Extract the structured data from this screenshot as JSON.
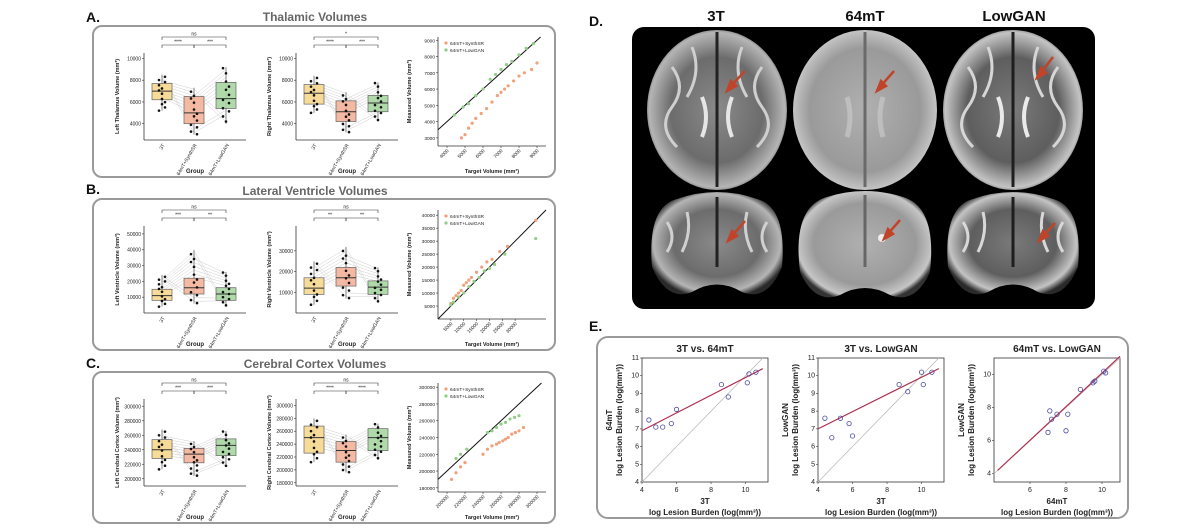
{
  "sections": {
    "A": {
      "letter": "A.",
      "title": "Thalamic Volumes"
    },
    "B": {
      "letter": "B.",
      "title": "Lateral Ventricle Volumes"
    },
    "C": {
      "letter": "C.",
      "title": "Cerebral Cortex Volumes"
    },
    "D": {
      "letter": "D.",
      "col_titles": [
        "3T",
        "64mT",
        "LowGAN"
      ]
    },
    "E": {
      "letter": "E."
    }
  },
  "colors": {
    "box_3t": "#f7d98f",
    "box_synth": "#f5b39a",
    "box_lowgan": "#a9d6a3",
    "scatter_synth": "#f0a07a",
    "scatter_lowgan": "#8fcf85",
    "reg_line": "#b03050",
    "identity_line": "#bbbbbb",
    "arrow": "#c0442a"
  },
  "groups": [
    "3T",
    "64mT+SynthSR",
    "64mT+LowGAN"
  ],
  "group_axis_label": "Group",
  "chart_data": [
    {
      "id": "A1",
      "type": "box",
      "ylabel": "Left Thalamus Volume (mm³)",
      "xlabel": "Group",
      "ylim": [
        2500,
        10500
      ],
      "yticks": [
        4000,
        6000,
        8000,
        10000
      ],
      "boxes": [
        {
          "q1": 6200,
          "med": 7000,
          "q3": 7700,
          "lo": 5200,
          "hi": 8500
        },
        {
          "q1": 4000,
          "med": 5000,
          "q3": 6500,
          "lo": 3000,
          "hi": 7300
        },
        {
          "q1": 5400,
          "med": 6300,
          "q3": 7800,
          "lo": 4000,
          "hi": 9200
        }
      ],
      "sig": [
        {
          "from": 0,
          "to": 2,
          "label": "ns"
        },
        {
          "from": 0,
          "to": 1,
          "label": "****"
        },
        {
          "from": 1,
          "to": 2,
          "label": "***"
        }
      ]
    },
    {
      "id": "A2",
      "type": "box",
      "ylabel": "Right Thalamus Volume (mm³)",
      "xlabel": "Group",
      "ylim": [
        2500,
        10500
      ],
      "yticks": [
        4000,
        6000,
        8000,
        10000
      ],
      "boxes": [
        {
          "q1": 5800,
          "med": 6800,
          "q3": 7600,
          "lo": 5000,
          "hi": 8400
        },
        {
          "q1": 4200,
          "med": 5100,
          "q3": 6100,
          "lo": 3200,
          "hi": 6900
        },
        {
          "q1": 5100,
          "med": 5900,
          "q3": 6600,
          "lo": 4200,
          "hi": 7800
        }
      ],
      "sig": [
        {
          "from": 0,
          "to": 2,
          "label": "*"
        },
        {
          "from": 0,
          "to": 1,
          "label": "****"
        },
        {
          "from": 1,
          "to": 2,
          "label": "***"
        }
      ]
    },
    {
      "id": "A3",
      "type": "scatter",
      "xlabel": "Target Volume (mm³)",
      "ylabel": "Measured Volume (mm³)",
      "xlim": [
        3500,
        9500
      ],
      "ylim": [
        2500,
        9200
      ],
      "xticks": [
        4000,
        5000,
        6000,
        7000,
        8000,
        9000
      ],
      "yticks": [
        3000,
        4000,
        5000,
        6000,
        7000,
        8000,
        9000
      ],
      "legend": [
        "64mT+SynthSR",
        "64mT+LowGAN"
      ],
      "series": [
        {
          "name": "64mT+SynthSR",
          "points": [
            [
              4800,
              3000
            ],
            [
              5000,
              3200
            ],
            [
              5200,
              3600
            ],
            [
              5400,
              3900
            ],
            [
              5600,
              4200
            ],
            [
              5900,
              4500
            ],
            [
              6200,
              4800
            ],
            [
              6500,
              5200
            ],
            [
              6800,
              5600
            ],
            [
              7000,
              5800
            ],
            [
              7200,
              6000
            ],
            [
              7400,
              6200
            ],
            [
              7700,
              6500
            ],
            [
              8000,
              6800
            ],
            [
              8300,
              7000
            ],
            [
              8700,
              7200
            ],
            [
              9000,
              7600
            ]
          ]
        },
        {
          "name": "64mT+LowGAN",
          "points": [
            [
              4400,
              4400
            ],
            [
              4900,
              4900
            ],
            [
              5200,
              5100
            ],
            [
              5600,
              5600
            ],
            [
              6000,
              6000
            ],
            [
              6400,
              6600
            ],
            [
              6700,
              6900
            ],
            [
              7000,
              7200
            ],
            [
              7300,
              7500
            ],
            [
              7600,
              7700
            ],
            [
              8000,
              8100
            ],
            [
              8400,
              8500
            ],
            [
              8800,
              8800
            ]
          ]
        }
      ],
      "identity": true
    },
    {
      "id": "B1",
      "type": "box",
      "ylabel": "Left Ventricle Volume (mm³)",
      "xlabel": "Group",
      "ylim": [
        0,
        55000
      ],
      "yticks": [
        10000,
        20000,
        30000,
        40000,
        50000
      ],
      "boxes": [
        {
          "q1": 8000,
          "med": 11000,
          "q3": 15000,
          "lo": 4000,
          "hi": 24000
        },
        {
          "q1": 12000,
          "med": 16000,
          "q3": 22000,
          "lo": 6000,
          "hi": 40000
        },
        {
          "q1": 8000,
          "med": 12000,
          "q3": 16000,
          "lo": 4000,
          "hi": 26000
        }
      ],
      "sig": [
        {
          "from": 0,
          "to": 2,
          "label": "ns"
        },
        {
          "from": 0,
          "to": 1,
          "label": "***"
        },
        {
          "from": 1,
          "to": 2,
          "label": "**"
        }
      ]
    },
    {
      "id": "B2",
      "type": "box",
      "ylabel": "Right Ventricle Volume (mm³)",
      "xlabel": "Group",
      "ylim": [
        0,
        42000
      ],
      "yticks": [
        10000,
        20000,
        30000
      ],
      "boxes": [
        {
          "q1": 9000,
          "med": 12000,
          "q3": 17000,
          "lo": 4000,
          "hi": 25000
        },
        {
          "q1": 13000,
          "med": 17000,
          "q3": 22000,
          "lo": 7000,
          "hi": 32000
        },
        {
          "q1": 9000,
          "med": 12500,
          "q3": 15500,
          "lo": 5000,
          "hi": 22000
        }
      ],
      "sig": [
        {
          "from": 0,
          "to": 2,
          "label": "ns"
        },
        {
          "from": 0,
          "to": 1,
          "label": "**"
        },
        {
          "from": 1,
          "to": 2,
          "label": "**"
        }
      ]
    },
    {
      "id": "B3",
      "type": "scatter",
      "xlabel": "Target Volume (mm³)",
      "ylabel": "Measured Volume (mm³)",
      "xlim": [
        0,
        42000
      ],
      "ylim": [
        0,
        42000
      ],
      "xticks": [
        5000,
        10000,
        15000,
        20000,
        25000,
        30000
      ],
      "yticks": [
        5000,
        10000,
        15000,
        20000,
        25000,
        30000,
        35000,
        40000
      ],
      "legend": [
        "64mT+SynthSR",
        "64mT+LowGAN"
      ],
      "series": [
        {
          "name": "64mT+SynthSR",
          "points": [
            [
              5000,
              6000
            ],
            [
              6000,
              8000
            ],
            [
              7000,
              9000
            ],
            [
              8000,
              10000
            ],
            [
              9000,
              11000
            ],
            [
              10000,
              13000
            ],
            [
              11000,
              14000
            ],
            [
              12000,
              15000
            ],
            [
              13000,
              16000
            ],
            [
              15000,
              18000
            ],
            [
              17000,
              20000
            ],
            [
              19000,
              22000
            ],
            [
              21000,
              23000
            ],
            [
              24000,
              26000
            ],
            [
              27000,
              28000
            ],
            [
              38000,
              38000
            ]
          ]
        },
        {
          "name": "64mT+LowGAN",
          "points": [
            [
              5000,
              5500
            ],
            [
              6000,
              6500
            ],
            [
              8000,
              8500
            ],
            [
              10000,
              10000
            ],
            [
              12000,
              12500
            ],
            [
              14000,
              14500
            ],
            [
              16000,
              16000
            ],
            [
              18000,
              18500
            ],
            [
              20000,
              19500
            ],
            [
              22000,
              21000
            ],
            [
              26000,
              25000
            ],
            [
              38000,
              31000
            ]
          ]
        }
      ],
      "identity": true
    },
    {
      "id": "C1",
      "type": "box",
      "ylabel": "Left Cerebral Cortex Volume (mm³)",
      "xlabel": "Group",
      "ylim": [
        190000,
        310000
      ],
      "yticks": [
        200000,
        220000,
        240000,
        260000,
        280000,
        300000
      ],
      "boxes": [
        {
          "q1": 228000,
          "med": 240000,
          "q3": 254000,
          "lo": 213000,
          "hi": 268000
        },
        {
          "q1": 222000,
          "med": 234000,
          "q3": 242000,
          "lo": 204000,
          "hi": 252000
        },
        {
          "q1": 232000,
          "med": 246000,
          "q3": 255000,
          "lo": 216000,
          "hi": 266000
        }
      ],
      "sig": [
        {
          "from": 0,
          "to": 2,
          "label": "ns"
        },
        {
          "from": 0,
          "to": 1,
          "label": "***"
        },
        {
          "from": 1,
          "to": 2,
          "label": "***"
        }
      ]
    },
    {
      "id": "C2",
      "type": "box",
      "ylabel": "Right Cerebral Cortex Volume (mm³)",
      "xlabel": "Group",
      "ylim": [
        175000,
        310000
      ],
      "yticks": [
        180000,
        200000,
        220000,
        240000,
        260000,
        280000,
        300000
      ],
      "boxes": [
        {
          "q1": 226000,
          "med": 250000,
          "q3": 268000,
          "lo": 212000,
          "hi": 280000
        },
        {
          "q1": 212000,
          "med": 230000,
          "q3": 244000,
          "lo": 196000,
          "hi": 255000
        },
        {
          "q1": 230000,
          "med": 250000,
          "q3": 264000,
          "lo": 216000,
          "hi": 272000
        }
      ],
      "sig": [
        {
          "from": 0,
          "to": 2,
          "label": "ns"
        },
        {
          "from": 0,
          "to": 1,
          "label": "****"
        },
        {
          "from": 1,
          "to": 2,
          "label": "****"
        }
      ]
    },
    {
      "id": "C3",
      "type": "scatter",
      "xlabel": "Target Volume (mm³)",
      "ylabel": "Measured Volume (mm³)",
      "xlim": [
        190000,
        310000
      ],
      "ylim": [
        175000,
        305000
      ],
      "xticks": [
        200000,
        220000,
        240000,
        260000,
        280000,
        300000
      ],
      "yticks": [
        180000,
        200000,
        220000,
        240000,
        260000,
        280000,
        300000
      ],
      "legend": [
        "64mT+SynthSR",
        "64mT+LowGAN"
      ],
      "series": [
        {
          "name": "64mT+SynthSR",
          "points": [
            [
              205000,
              190000
            ],
            [
              210000,
              198000
            ],
            [
              215000,
              205000
            ],
            [
              220000,
              210000
            ],
            [
              240000,
              220000
            ],
            [
              245000,
              226000
            ],
            [
              250000,
              230000
            ],
            [
              255000,
              232000
            ],
            [
              258000,
              234000
            ],
            [
              262000,
              236000
            ],
            [
              265000,
              238000
            ],
            [
              268000,
              240000
            ],
            [
              272000,
              244000
            ],
            [
              276000,
              246000
            ],
            [
              280000,
              248000
            ],
            [
              285000,
              252000
            ]
          ]
        },
        {
          "name": "64mT+LowGAN",
          "points": [
            [
              210000,
              215000
            ],
            [
              215000,
              220000
            ],
            [
              222000,
              226000
            ],
            [
              245000,
              246000
            ],
            [
              250000,
              248000
            ],
            [
              255000,
              252000
            ],
            [
              260000,
              256000
            ],
            [
              265000,
              258000
            ],
            [
              270000,
              262000
            ],
            [
              275000,
              264000
            ],
            [
              280000,
              266000
            ]
          ]
        }
      ],
      "identity": true
    },
    {
      "id": "E1",
      "type": "scatter",
      "title": "3T vs. 64mT",
      "xlabel": "3T",
      "xlabel2": "log Lesion Burden (log(mm³))",
      "ylabel": "64mT",
      "ylabel2": "log Lesion Burden (log(mm³))",
      "xlim": [
        4,
        11.3
      ],
      "ylim": [
        4,
        11
      ],
      "xticks": [
        4,
        6,
        8,
        10
      ],
      "yticks": [
        4,
        5,
        6,
        7,
        8,
        9,
        10,
        11
      ],
      "series": [
        {
          "name": "",
          "points": [
            [
              4.4,
              7.5
            ],
            [
              4.8,
              7.1
            ],
            [
              5.2,
              7.1
            ],
            [
              5.7,
              7.3
            ],
            [
              6,
              8.1
            ],
            [
              8.6,
              9.5
            ],
            [
              9,
              8.8
            ],
            [
              10.1,
              9.6
            ],
            [
              10.2,
              10.1
            ],
            [
              10.6,
              10.2
            ]
          ]
        }
      ],
      "regression": [
        [
          4,
          6.9
        ],
        [
          11,
          10.4
        ]
      ],
      "identity": true
    },
    {
      "id": "E2",
      "type": "scatter",
      "title": "3T vs. LowGAN",
      "xlabel": "3T",
      "xlabel2": "log Lesion Burden (log(mm³))",
      "ylabel": "LowGAN",
      "ylabel2": "log Lesion Burden (log(mm³))",
      "xlim": [
        4,
        11.3
      ],
      "ylim": [
        4,
        11
      ],
      "xticks": [
        4,
        6,
        8,
        10
      ],
      "yticks": [
        4,
        5,
        6,
        7,
        8,
        9,
        10,
        11
      ],
      "series": [
        {
          "name": "",
          "points": [
            [
              4.4,
              7.6
            ],
            [
              4.8,
              6.5
            ],
            [
              5.3,
              7.6
            ],
            [
              5.8,
              7.3
            ],
            [
              6,
              6.6
            ],
            [
              8.7,
              9.5
            ],
            [
              9.2,
              9.1
            ],
            [
              10,
              10.2
            ],
            [
              10.1,
              9.5
            ],
            [
              10.6,
              10.2
            ]
          ]
        }
      ],
      "regression": [
        [
          4,
          7
        ],
        [
          11,
          10.4
        ]
      ],
      "identity": true
    },
    {
      "id": "E3",
      "type": "scatter",
      "title": "64mT vs. LowGAN",
      "xlabel": "64mT",
      "xlabel2": "log Lesion Burden (log(mm³))",
      "ylabel": "LowGAN",
      "ylabel2": "log Lesion Burden (log(mm³))",
      "xlim": [
        4,
        11
      ],
      "ylim": [
        3.5,
        11
      ],
      "xticks": [
        6,
        8,
        10
      ],
      "yticks": [
        4,
        6,
        8,
        10
      ],
      "series": [
        {
          "name": "",
          "points": [
            [
              7,
              6.5
            ],
            [
              7.1,
              7.8
            ],
            [
              7.2,
              7.3
            ],
            [
              7.5,
              7.6
            ],
            [
              8,
              6.6
            ],
            [
              8.1,
              7.6
            ],
            [
              8.8,
              9.1
            ],
            [
              9.5,
              9.5
            ],
            [
              9.6,
              9.6
            ],
            [
              10.1,
              10.2
            ],
            [
              10.2,
              10.1
            ]
          ]
        }
      ],
      "regression": [
        [
          4.2,
          4.2
        ],
        [
          11,
          11.1
        ]
      ],
      "identity": true
    }
  ]
}
